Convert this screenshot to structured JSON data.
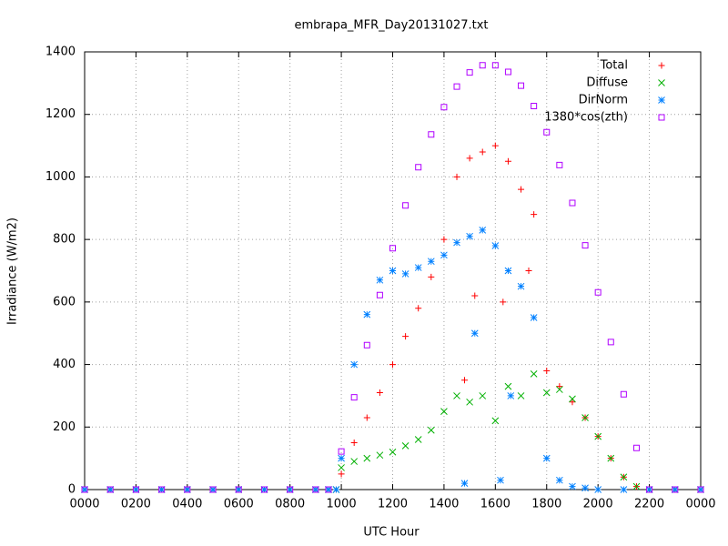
{
  "chart_data": {
    "type": "scatter",
    "title": "embrapa_MFR_Day20131027.txt",
    "x_label": "UTC Hour",
    "y_label": "Irradiance (W/m2)",
    "xlim": [
      0,
      24
    ],
    "ylim": [
      0,
      1400
    ],
    "xticks": [
      {
        "value": 0,
        "label": "0000"
      },
      {
        "value": 2,
        "label": "0200"
      },
      {
        "value": 4,
        "label": "0400"
      },
      {
        "value": 6,
        "label": "0600"
      },
      {
        "value": 8,
        "label": "0800"
      },
      {
        "value": 10,
        "label": "1000"
      },
      {
        "value": 12,
        "label": "1200"
      },
      {
        "value": 14,
        "label": "1400"
      },
      {
        "value": 16,
        "label": "1600"
      },
      {
        "value": 18,
        "label": "1800"
      },
      {
        "value": 20,
        "label": "2000"
      },
      {
        "value": 22,
        "label": "2200"
      },
      {
        "value": 24,
        "label": "0000"
      }
    ],
    "yticks": [
      0,
      200,
      400,
      600,
      800,
      1000,
      1200,
      1400
    ],
    "grid": true,
    "legend": "top-right",
    "series": [
      {
        "name": "Total",
        "color": "#ff0000",
        "marker": "plus",
        "x": [
          0,
          1,
          2,
          3,
          4,
          5,
          6,
          7,
          8,
          9,
          9.5,
          9.8,
          10,
          10.5,
          11,
          11.5,
          12,
          12.5,
          13,
          13.5,
          14,
          14.5,
          14.8,
          15,
          15.2,
          15.5,
          16,
          16.3,
          16.5,
          17,
          17.3,
          17.5,
          18,
          18.5,
          19,
          19.5,
          20,
          20.5,
          21,
          21.5,
          22,
          23,
          24
        ],
        "values": [
          0,
          0,
          0,
          0,
          0,
          0,
          0,
          0,
          0,
          0,
          0,
          0,
          50,
          150,
          230,
          310,
          400,
          490,
          580,
          680,
          800,
          1000,
          350,
          1060,
          620,
          1080,
          1100,
          600,
          1050,
          960,
          700,
          880,
          380,
          330,
          280,
          230,
          170,
          100,
          40,
          10,
          0,
          0,
          0
        ]
      },
      {
        "name": "Diffuse",
        "color": "#00b000",
        "marker": "cross",
        "x": [
          0,
          1,
          2,
          3,
          4,
          5,
          6,
          7,
          8,
          9,
          9.5,
          9.8,
          10,
          10.5,
          11,
          11.5,
          12,
          12.5,
          13,
          13.5,
          14,
          14.5,
          15,
          15.5,
          16,
          16.5,
          17,
          17.5,
          18,
          18.5,
          19,
          19.5,
          20,
          20.5,
          21,
          21.5,
          22,
          23,
          24
        ],
        "values": [
          0,
          0,
          0,
          0,
          0,
          0,
          0,
          0,
          0,
          0,
          0,
          0,
          70,
          90,
          100,
          110,
          120,
          140,
          160,
          190,
          250,
          300,
          280,
          300,
          220,
          330,
          300,
          370,
          310,
          320,
          290,
          230,
          170,
          100,
          40,
          10,
          0,
          0,
          0
        ]
      },
      {
        "name": "DirNorm",
        "color": "#0080ff",
        "marker": "star",
        "x": [
          0,
          1,
          2,
          3,
          4,
          5,
          6,
          7,
          8,
          9,
          9.5,
          9.8,
          10,
          10.5,
          11,
          11.5,
          12,
          12.5,
          13,
          13.5,
          14,
          14.5,
          14.8,
          15,
          15.2,
          15.5,
          16,
          16.2,
          16.5,
          16.6,
          17,
          17.5,
          18,
          18.5,
          19,
          19.5,
          20,
          21,
          22,
          23,
          24
        ],
        "values": [
          0,
          0,
          0,
          0,
          0,
          0,
          0,
          0,
          0,
          0,
          0,
          0,
          100,
          400,
          560,
          670,
          700,
          690,
          710,
          730,
          750,
          790,
          20,
          810,
          500,
          830,
          780,
          30,
          700,
          300,
          650,
          550,
          100,
          30,
          10,
          5,
          0,
          0,
          0,
          0,
          0
        ]
      },
      {
        "name": "1380*cos(zth)",
        "color": "#b000ff",
        "marker": "square",
        "x": [
          0,
          1,
          2,
          3,
          4,
          5,
          6,
          7,
          8,
          9,
          9.5,
          10,
          10.5,
          11,
          11.5,
          12,
          12.5,
          13,
          13.5,
          14,
          14.5,
          15,
          15.5,
          16,
          16.5,
          17,
          17.5,
          18,
          18.5,
          19,
          19.5,
          20,
          20.5,
          21,
          21.5,
          22,
          23,
          24
        ],
        "values": [
          0,
          0,
          0,
          0,
          0,
          0,
          0,
          0,
          0,
          0,
          0,
          122,
          295,
          462,
          622,
          772,
          909,
          1031,
          1136,
          1223,
          1289,
          1334,
          1357,
          1357,
          1336,
          1292,
          1227,
          1143,
          1038,
          917,
          781,
          631,
          472,
          305,
          133,
          0,
          0,
          0
        ]
      }
    ]
  }
}
